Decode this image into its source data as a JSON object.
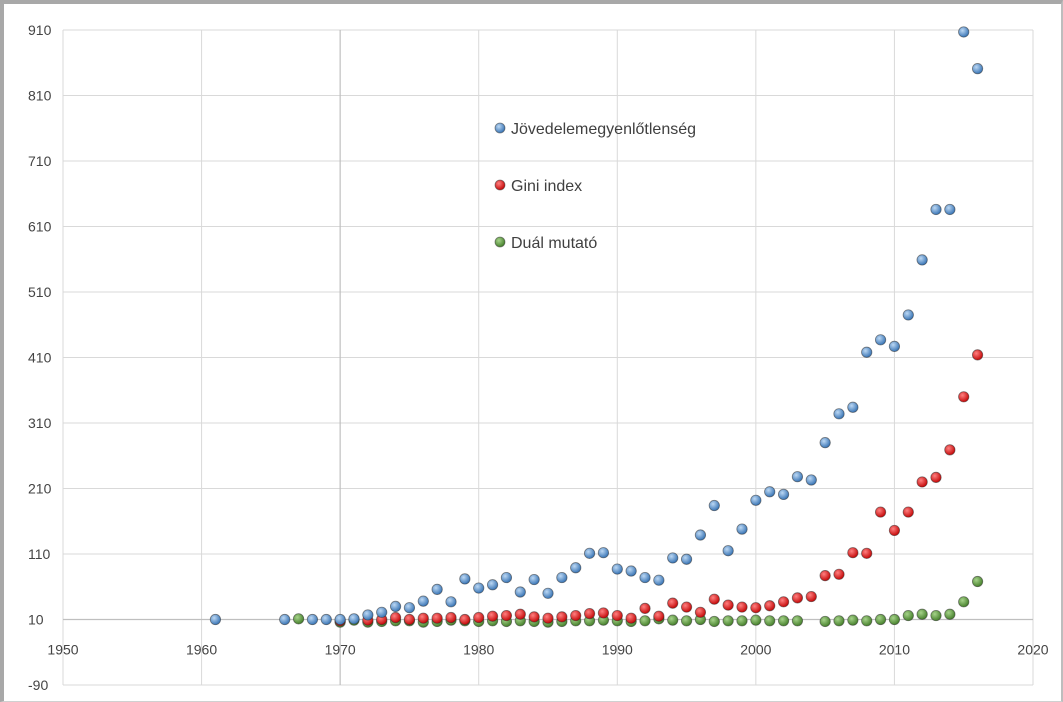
{
  "chart_data": {
    "type": "scatter",
    "xlim": [
      1950,
      2020
    ],
    "ylim": [
      -90,
      910
    ],
    "x_ticks": [
      1950,
      1960,
      1970,
      1980,
      1990,
      2000,
      2010,
      2020
    ],
    "y_ticks": [
      -90,
      10,
      110,
      210,
      310,
      410,
      510,
      610,
      710,
      810,
      910
    ],
    "grid": true,
    "legend_position": "upper-center",
    "series": [
      {
        "name": "Jövedelemegyenlőtlenség",
        "color": "#4f8fd0",
        "points": [
          [
            1961,
            10
          ],
          [
            1966,
            10
          ],
          [
            1968,
            10
          ],
          [
            1969,
            10
          ],
          [
            1970,
            10
          ],
          [
            1971,
            11
          ],
          [
            1972,
            17
          ],
          [
            1973,
            21
          ],
          [
            1974,
            30
          ],
          [
            1975,
            28
          ],
          [
            1976,
            38
          ],
          [
            1977,
            56
          ],
          [
            1978,
            37
          ],
          [
            1979,
            72
          ],
          [
            1980,
            58
          ],
          [
            1981,
            63
          ],
          [
            1982,
            74
          ],
          [
            1983,
            52
          ],
          [
            1984,
            71
          ],
          [
            1985,
            50
          ],
          [
            1986,
            74
          ],
          [
            1987,
            89
          ],
          [
            1988,
            111
          ],
          [
            1989,
            112
          ],
          [
            1990,
            87
          ],
          [
            1991,
            84
          ],
          [
            1992,
            74
          ],
          [
            1993,
            70
          ],
          [
            1994,
            104
          ],
          [
            1995,
            102
          ],
          [
            1996,
            139
          ],
          [
            1997,
            184
          ],
          [
            1998,
            115
          ],
          [
            1999,
            148
          ],
          [
            2000,
            192
          ],
          [
            2001,
            205
          ],
          [
            2002,
            201
          ],
          [
            2003,
            228
          ],
          [
            2004,
            223
          ],
          [
            2005,
            280
          ],
          [
            2006,
            324
          ],
          [
            2007,
            334
          ],
          [
            2008,
            418
          ],
          [
            2009,
            437
          ],
          [
            2010,
            427
          ],
          [
            2011,
            475
          ],
          [
            2012,
            559
          ],
          [
            2013,
            636
          ],
          [
            2014,
            636
          ],
          [
            2015,
            907
          ],
          [
            2016,
            851
          ]
        ]
      },
      {
        "name": "Gini index",
        "color": "#e01010",
        "points": [
          [
            1970,
            8
          ],
          [
            1972,
            9
          ],
          [
            1973,
            10
          ],
          [
            1974,
            13
          ],
          [
            1975,
            10
          ],
          [
            1976,
            12
          ],
          [
            1977,
            12
          ],
          [
            1978,
            13
          ],
          [
            1979,
            10
          ],
          [
            1980,
            13
          ],
          [
            1981,
            15
          ],
          [
            1982,
            16
          ],
          [
            1983,
            18
          ],
          [
            1984,
            14
          ],
          [
            1985,
            12
          ],
          [
            1986,
            14
          ],
          [
            1987,
            16
          ],
          [
            1988,
            19
          ],
          [
            1989,
            20
          ],
          [
            1990,
            16
          ],
          [
            1991,
            12
          ],
          [
            1992,
            27
          ],
          [
            1993,
            15
          ],
          [
            1994,
            35
          ],
          [
            1995,
            29
          ],
          [
            1996,
            21
          ],
          [
            1997,
            41
          ],
          [
            1998,
            32
          ],
          [
            1999,
            29
          ],
          [
            2000,
            28
          ],
          [
            2001,
            31
          ],
          [
            2002,
            37
          ],
          [
            2003,
            43
          ],
          [
            2004,
            45
          ],
          [
            2005,
            77
          ],
          [
            2006,
            79
          ],
          [
            2007,
            112
          ],
          [
            2008,
            111
          ],
          [
            2009,
            174
          ],
          [
            2010,
            146
          ],
          [
            2011,
            174
          ],
          [
            2012,
            220
          ],
          [
            2013,
            227
          ],
          [
            2014,
            269
          ],
          [
            2015,
            350
          ],
          [
            2016,
            414
          ]
        ]
      },
      {
        "name": "Duál mutató",
        "color": "#5a9a3a",
        "points": [
          [
            1967,
            11
          ],
          [
            1970,
            6
          ],
          [
            1971,
            9
          ],
          [
            1972,
            6
          ],
          [
            1973,
            7
          ],
          [
            1974,
            8
          ],
          [
            1975,
            8
          ],
          [
            1976,
            6
          ],
          [
            1977,
            7
          ],
          [
            1978,
            9
          ],
          [
            1979,
            8
          ],
          [
            1980,
            7
          ],
          [
            1981,
            8
          ],
          [
            1982,
            7
          ],
          [
            1983,
            8
          ],
          [
            1984,
            7
          ],
          [
            1985,
            6
          ],
          [
            1986,
            7
          ],
          [
            1987,
            8
          ],
          [
            1988,
            8
          ],
          [
            1989,
            9
          ],
          [
            1990,
            8
          ],
          [
            1991,
            7
          ],
          [
            1992,
            8
          ],
          [
            1993,
            11
          ],
          [
            1994,
            9
          ],
          [
            1995,
            8
          ],
          [
            1996,
            10
          ],
          [
            1997,
            7
          ],
          [
            1998,
            8
          ],
          [
            1999,
            8
          ],
          [
            2000,
            9
          ],
          [
            2001,
            8
          ],
          [
            2002,
            8
          ],
          [
            2003,
            8
          ],
          [
            2005,
            7
          ],
          [
            2006,
            8
          ],
          [
            2007,
            9
          ],
          [
            2008,
            8
          ],
          [
            2009,
            10
          ],
          [
            2010,
            10
          ],
          [
            2011,
            16
          ],
          [
            2012,
            18
          ],
          [
            2013,
            16
          ],
          [
            2014,
            18
          ],
          [
            2015,
            37
          ],
          [
            2016,
            68
          ]
        ]
      }
    ]
  }
}
